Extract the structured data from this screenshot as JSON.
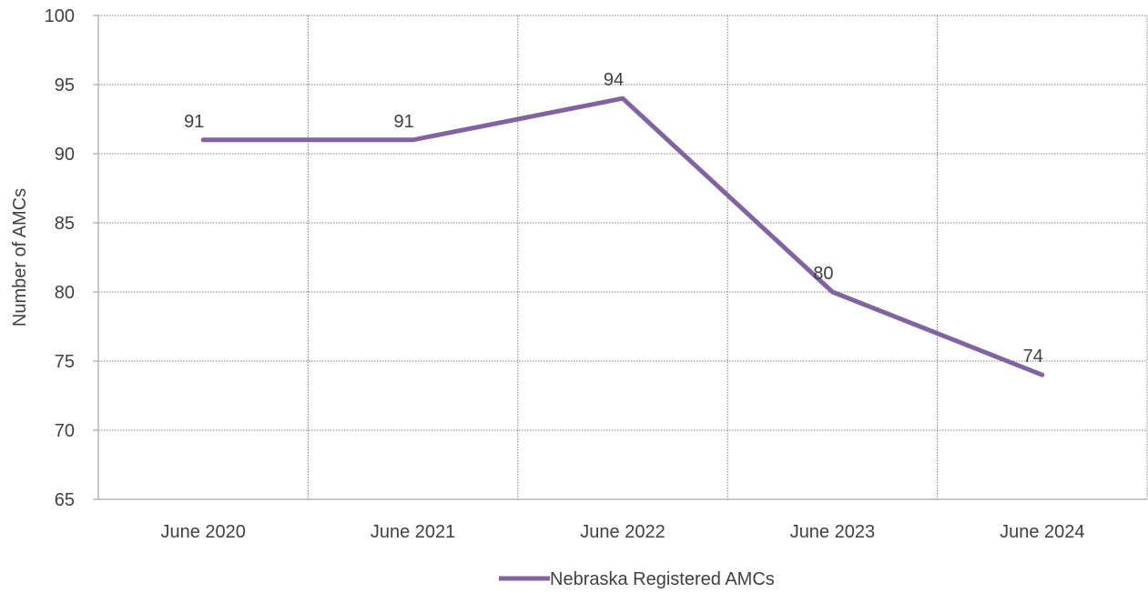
{
  "chart_data": {
    "type": "line",
    "categories": [
      "June 2020",
      "June 2021",
      "June 2022",
      "June 2023",
      "June 2024"
    ],
    "series": [
      {
        "name": "Nebraska Registered AMCs",
        "values": [
          91,
          91,
          94,
          80,
          74
        ],
        "color": "#8064a2"
      }
    ],
    "xlabel": "",
    "ylabel": "Number of AMCs",
    "ylim": [
      65,
      100
    ],
    "yticks": [
      65,
      70,
      75,
      80,
      85,
      90,
      95,
      100
    ],
    "grid": true,
    "legend": "bottom",
    "colors": {
      "axis": "#a6a6a6",
      "grid": "#808080",
      "text": "#404040"
    }
  }
}
